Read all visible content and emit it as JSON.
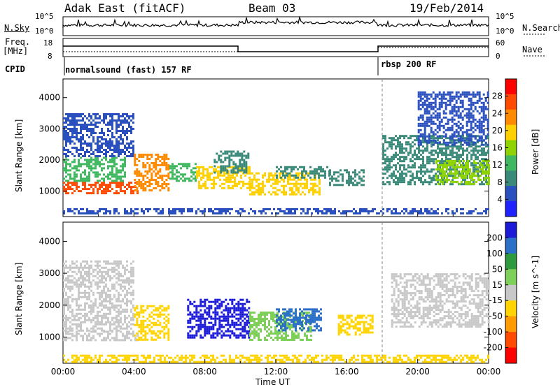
{
  "header": {
    "radar": "Adak East (fitACF)",
    "beam": "Beam 03",
    "date": "19/Feb/2014"
  },
  "params": {
    "nsky_label": "N.Sky",
    "nsearch_label": "N.Search",
    "nsky_ticks": [
      "10^5",
      "10^0"
    ],
    "nsearch_ticks": [
      "10^5",
      "10^0"
    ],
    "freq_label_1": "Freq.",
    "freq_label_2": "[MHz]",
    "freq_ticks": [
      "18",
      "8"
    ],
    "nave_label": "Nave",
    "nave_ticks": [
      "60",
      "0"
    ],
    "cpid_label": "CPID",
    "cpid_1": "normalsound (fast) 157 RF",
    "cpid_2": "rbsp 200 RF"
  },
  "chart_data": [
    {
      "type": "heatmap",
      "panel": "power",
      "ylabel": "Slant Range [km]",
      "yticks": [
        "4000",
        "3000",
        "2000",
        "1000"
      ],
      "ylim": [
        180,
        4600
      ],
      "xlim": [
        0,
        24
      ],
      "colorbar_label": "Power [dB]",
      "colorbar_ticks": [
        "28",
        "24",
        "20",
        "16",
        "12",
        "8",
        "4"
      ],
      "colorbar_colors": [
        "#ff0000",
        "#ff4a00",
        "#ff8a00",
        "#ffd000",
        "#8fd400",
        "#3fb85f",
        "#3a8a7a",
        "#2a4fbf",
        "#1e22ff"
      ],
      "blobs": [
        {
          "x0": 0.0,
          "x1": 4.2,
          "y0": 900,
          "y1": 1300,
          "level": 28
        },
        {
          "x0": 0.0,
          "x1": 3.5,
          "y0": 1300,
          "y1": 2100,
          "level": 14
        },
        {
          "x0": 0.0,
          "x1": 4.0,
          "y0": 2100,
          "y1": 3500,
          "level": 6
        },
        {
          "x0": 4.0,
          "x1": 6.0,
          "y0": 1000,
          "y1": 2200,
          "level": 22
        },
        {
          "x0": 6.0,
          "x1": 7.5,
          "y0": 1300,
          "y1": 1900,
          "level": 12
        },
        {
          "x0": 7.5,
          "x1": 10.5,
          "y0": 1100,
          "y1": 1800,
          "level": 18
        },
        {
          "x0": 8.5,
          "x1": 10.5,
          "y0": 1600,
          "y1": 2300,
          "level": 10
        },
        {
          "x0": 10.5,
          "x1": 14.5,
          "y0": 900,
          "y1": 1600,
          "level": 20
        },
        {
          "x0": 12.0,
          "x1": 15.0,
          "y0": 1400,
          "y1": 1800,
          "level": 10
        },
        {
          "x0": 15.0,
          "x1": 17.0,
          "y0": 1200,
          "y1": 1700,
          "level": 8
        },
        {
          "x0": 18.0,
          "x1": 24.0,
          "y0": 1200,
          "y1": 2800,
          "level": 10
        },
        {
          "x0": 21.0,
          "x1": 24.0,
          "y0": 1200,
          "y1": 2000,
          "level": 16
        },
        {
          "x0": 20.0,
          "x1": 24.0,
          "y0": 2500,
          "y1": 4200,
          "level": 5
        },
        {
          "x0": 0.0,
          "x1": 24.0,
          "y0": 250,
          "y1": 450,
          "level": 6
        }
      ]
    },
    {
      "type": "heatmap",
      "panel": "velocity",
      "ylabel": "Slant Range [km]",
      "yticks": [
        "4000",
        "3000",
        "2000",
        "1000"
      ],
      "ylim": [
        180,
        4600
      ],
      "xlim": [
        0,
        24
      ],
      "colorbar_label": "Velocity [m s^-1]",
      "colorbar_ticks": [
        "200",
        "100",
        "50",
        "15",
        "-15",
        "-50",
        "-100",
        "-200"
      ],
      "colorbar_colors": [
        "#1a1ad8",
        "#2a6fc8",
        "#2e9a3e",
        "#7ed05a",
        "#c8c8c8",
        "#ffd400",
        "#ff9a00",
        "#ff4a00",
        "#ff0000"
      ],
      "xticks": [
        "00:00",
        "04:00",
        "08:00",
        "12:00",
        "16:00",
        "20:00",
        "00:00"
      ],
      "xlabel": "Time UT",
      "blobs": [
        {
          "x0": 0.0,
          "x1": 4.2,
          "y0": 900,
          "y1": 1200,
          "level": 0
        },
        {
          "x0": 0.0,
          "x1": 4.0,
          "y0": 1200,
          "y1": 3400,
          "level": 0
        },
        {
          "x0": 4.0,
          "x1": 6.0,
          "y0": 900,
          "y1": 2000,
          "level": -80
        },
        {
          "x0": 7.0,
          "x1": 10.5,
          "y0": 1000,
          "y1": 2200,
          "level": 200
        },
        {
          "x0": 10.5,
          "x1": 14.0,
          "y0": 900,
          "y1": 1800,
          "level": 40
        },
        {
          "x0": 12.0,
          "x1": 14.5,
          "y0": 1200,
          "y1": 1900,
          "level": 150
        },
        {
          "x0": 15.5,
          "x1": 17.5,
          "y0": 1100,
          "y1": 1700,
          "level": -60
        },
        {
          "x0": 18.5,
          "x1": 24.0,
          "y0": 1300,
          "y1": 3000,
          "level": 0
        },
        {
          "x0": 0.0,
          "x1": 24.0,
          "y0": 250,
          "y1": 450,
          "level": -60
        }
      ]
    }
  ]
}
